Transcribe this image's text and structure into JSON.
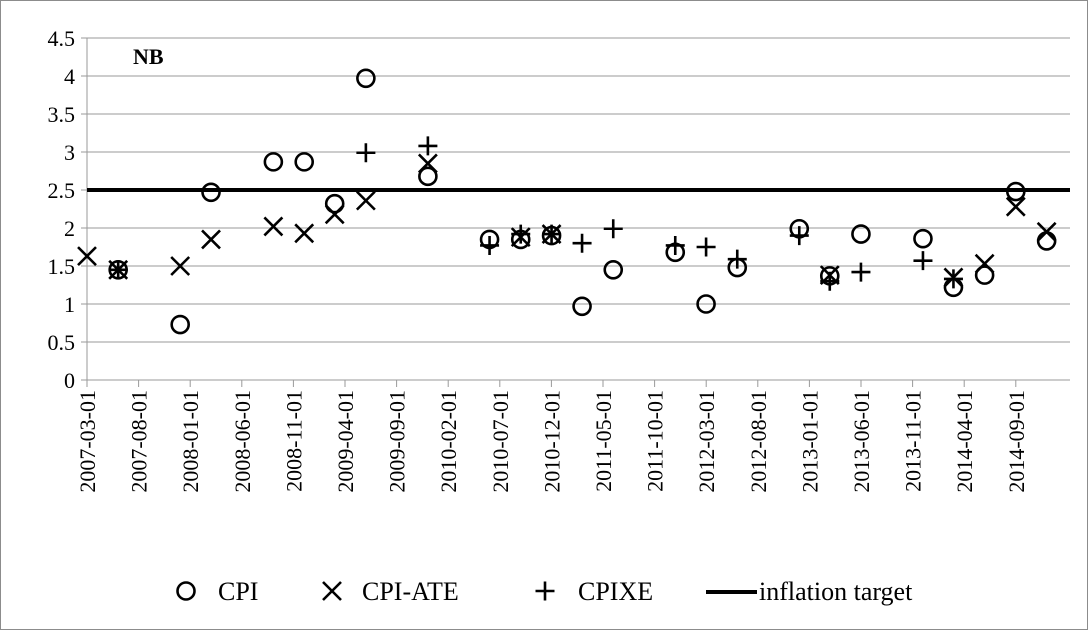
{
  "chart_data": {
    "type": "scatter",
    "panel_label": "NB",
    "ylim": [
      0,
      4.5
    ],
    "yticks": [
      "0",
      "0.5",
      "1",
      "1.5",
      "2",
      "2.5",
      "3",
      "3.5",
      "4",
      "4.5"
    ],
    "grid": true,
    "x_tick_labels": [
      "2007-03-01",
      "2007-08-01",
      "2008-01-01",
      "2008-06-01",
      "2008-11-01",
      "2009-04-01",
      "2009-09-01",
      "2010-02-01",
      "2010-07-01",
      "2010-12-01",
      "2011-05-01",
      "2011-10-01",
      "2012-03-01",
      "2012-08-01",
      "2013-01-01",
      "2013-06-01",
      "2013-11-01",
      "2014-04-01",
      "2014-09-01"
    ],
    "x": [
      "2007-03-01",
      "2007-06-01",
      "2007-12-01",
      "2008-03-01",
      "2008-09-01",
      "2008-12-01",
      "2009-03-01",
      "2009-06-01",
      "2009-12-01",
      "2010-06-01",
      "2010-09-01",
      "2010-12-01",
      "2011-03-01",
      "2011-06-01",
      "2011-12-01",
      "2012-03-01",
      "2012-06-01",
      "2012-12-01",
      "2013-03-01",
      "2013-06-01",
      "2013-12-01",
      "2014-03-01",
      "2014-06-01",
      "2014-09-01",
      "2014-12-01"
    ],
    "legend_position": "bottom",
    "series": [
      {
        "name": "CPI",
        "marker": "circle",
        "values": [
          null,
          1.45,
          0.73,
          2.47,
          2.87,
          2.87,
          2.32,
          3.97,
          2.68,
          1.85,
          1.85,
          1.9,
          0.97,
          1.45,
          1.68,
          1.0,
          1.48,
          1.99,
          1.37,
          1.92,
          1.86,
          1.22,
          1.38,
          2.48,
          1.83
        ]
      },
      {
        "name": "CPI-ATE",
        "marker": "x",
        "values": [
          1.63,
          1.45,
          1.5,
          1.85,
          2.02,
          1.93,
          2.18,
          2.36,
          2.85,
          null,
          1.88,
          1.92,
          null,
          null,
          null,
          null,
          null,
          null,
          1.38,
          null,
          null,
          1.35,
          1.53,
          2.28,
          1.95
        ]
      },
      {
        "name": "CPIXE",
        "marker": "plus",
        "values": [
          null,
          1.45,
          null,
          null,
          null,
          null,
          null,
          2.99,
          3.08,
          1.77,
          1.92,
          1.92,
          1.8,
          1.99,
          1.77,
          1.75,
          1.59,
          1.9,
          1.3,
          1.42,
          1.57,
          1.33,
          null,
          null,
          null
        ]
      }
    ],
    "target": {
      "name": "inflation target",
      "value": 2.5
    },
    "colors": {
      "markers": "#000000",
      "grid": "#9a9a9a",
      "frame": "#8c8c8c",
      "target_line": "#000000"
    }
  }
}
